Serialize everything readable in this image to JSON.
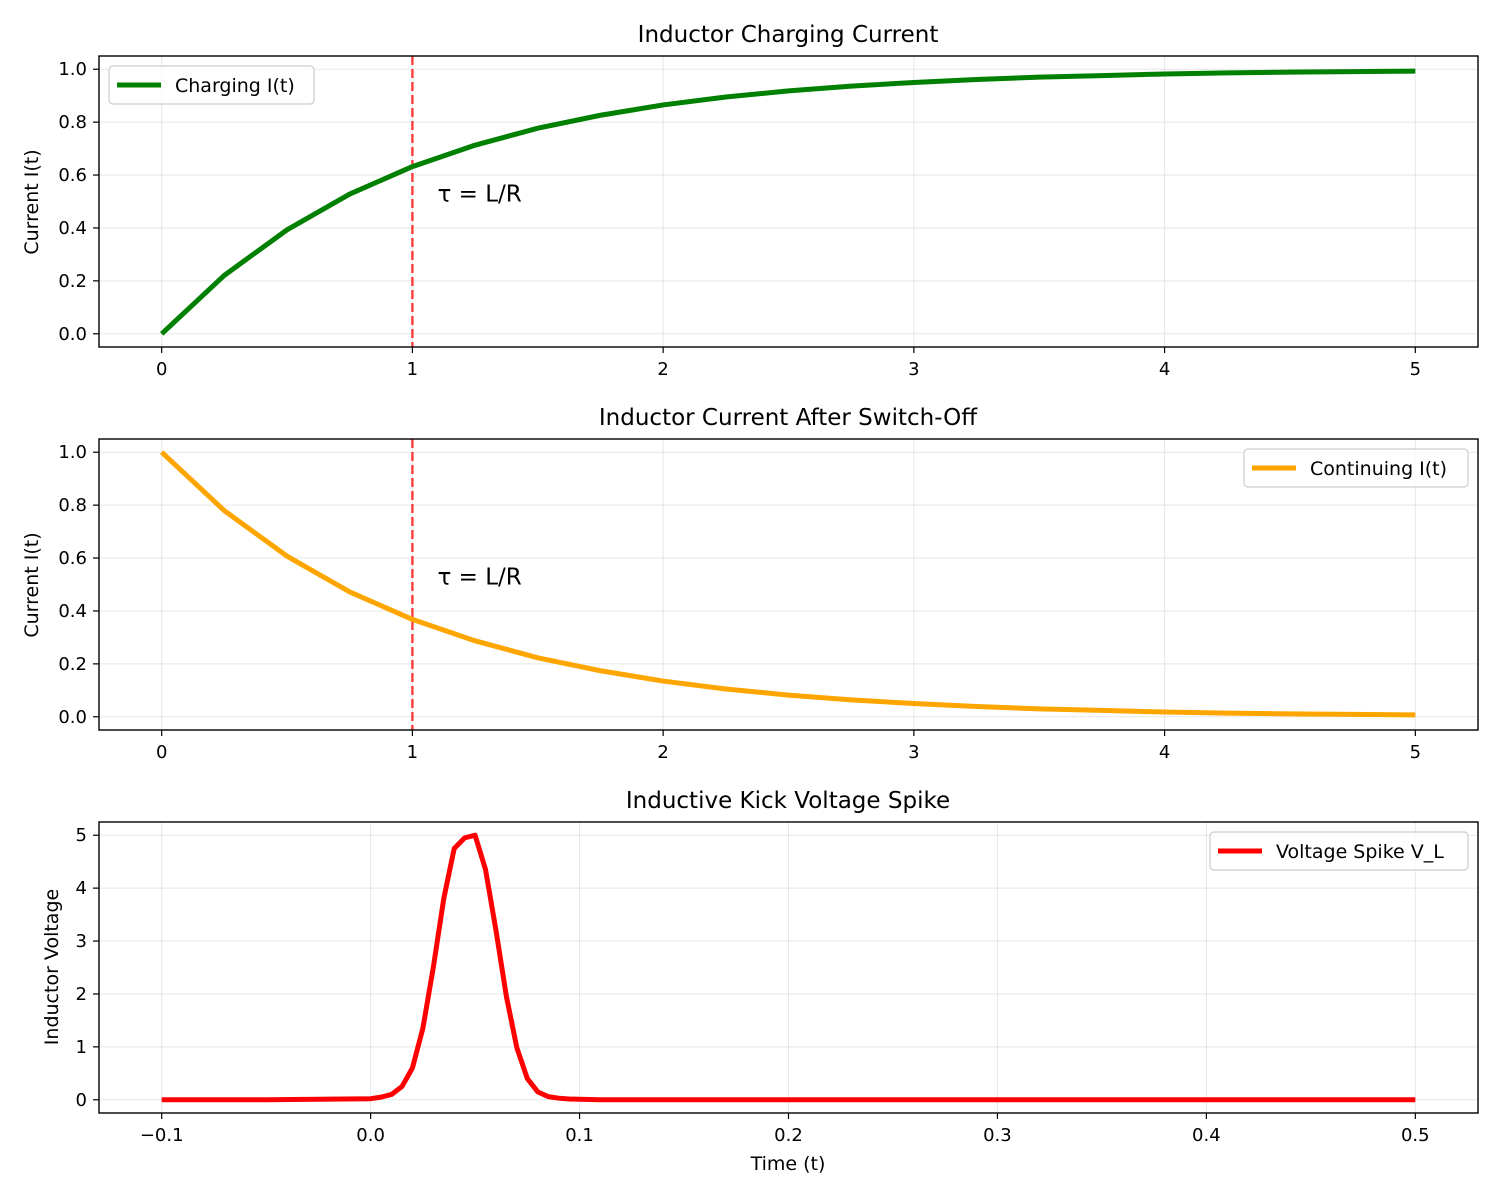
{
  "chart_data": [
    {
      "type": "line",
      "title": "Inductor Charging Current",
      "xlabel": "",
      "ylabel": "Current I(t)",
      "xlim": [
        -0.25,
        5.25
      ],
      "ylim": [
        -0.05,
        1.05
      ],
      "x_ticks": [
        "0",
        "1",
        "2",
        "3",
        "4",
        "5"
      ],
      "y_ticks": [
        "0.0",
        "0.2",
        "0.4",
        "0.6",
        "0.8",
        "1.0"
      ],
      "grid": true,
      "legend_position": "upper-left",
      "series": [
        {
          "name": "Charging I(t)",
          "color": "#008000",
          "x": [
            0,
            0.25,
            0.5,
            0.75,
            1,
            1.25,
            1.5,
            1.75,
            2,
            2.25,
            2.5,
            2.75,
            3,
            3.25,
            3.5,
            3.75,
            4,
            4.25,
            4.5,
            4.75,
            5
          ],
          "y": [
            0,
            0.221,
            0.393,
            0.528,
            0.632,
            0.713,
            0.777,
            0.826,
            0.865,
            0.895,
            0.918,
            0.936,
            0.95,
            0.961,
            0.97,
            0.976,
            0.982,
            0.986,
            0.989,
            0.991,
            0.993
          ]
        }
      ],
      "vline": {
        "x": 1,
        "color": "#ff0000",
        "style": "dashed"
      },
      "annotation": {
        "text": "τ = L/R",
        "x": 1.1,
        "y": 0.5
      }
    },
    {
      "type": "line",
      "title": "Inductor Current After Switch-Off",
      "xlabel": "",
      "ylabel": "Current I(t)",
      "xlim": [
        -0.25,
        5.25
      ],
      "ylim": [
        -0.05,
        1.05
      ],
      "x_ticks": [
        "0",
        "1",
        "2",
        "3",
        "4",
        "5"
      ],
      "y_ticks": [
        "0.0",
        "0.2",
        "0.4",
        "0.6",
        "0.8",
        "1.0"
      ],
      "grid": true,
      "legend_position": "upper-right",
      "series": [
        {
          "name": "Continuing I(t)",
          "color": "#ffa500",
          "x": [
            0,
            0.25,
            0.5,
            0.75,
            1,
            1.25,
            1.5,
            1.75,
            2,
            2.25,
            2.5,
            2.75,
            3,
            3.25,
            3.5,
            3.75,
            4,
            4.25,
            4.5,
            4.75,
            5
          ],
          "y": [
            1,
            0.779,
            0.607,
            0.472,
            0.368,
            0.287,
            0.223,
            0.174,
            0.135,
            0.105,
            0.082,
            0.064,
            0.05,
            0.039,
            0.03,
            0.024,
            0.018,
            0.014,
            0.011,
            0.009,
            0.007
          ]
        }
      ],
      "vline": {
        "x": 1,
        "color": "#ff0000",
        "style": "dashed"
      },
      "annotation": {
        "text": "τ = L/R",
        "x": 1.1,
        "y": 0.5
      }
    },
    {
      "type": "line",
      "title": "Inductive Kick Voltage Spike",
      "xlabel": "Time (t)",
      "ylabel": "Inductor Voltage",
      "xlim": [
        -0.13,
        0.53
      ],
      "ylim": [
        -0.25,
        5.25
      ],
      "x_ticks": [
        "−0.1",
        "0.0",
        "0.1",
        "0.2",
        "0.3",
        "0.4",
        "0.5"
      ],
      "y_ticks": [
        "0",
        "1",
        "2",
        "3",
        "4",
        "5"
      ],
      "grid": true,
      "legend_position": "upper-right",
      "series": [
        {
          "name": "Voltage Spike V_L",
          "color": "#ff0000",
          "x": [
            -0.1,
            -0.05,
            0,
            0.005,
            0.01,
            0.015,
            0.02,
            0.025,
            0.03,
            0.035,
            0.04,
            0.045,
            0.05,
            0.055,
            0.06,
            0.065,
            0.07,
            0.075,
            0.08,
            0.085,
            0.09,
            0.095,
            0.1,
            0.11,
            0.2,
            0.3,
            0.4,
            0.5
          ],
          "y": [
            0,
            0,
            0.02,
            0.05,
            0.1,
            0.25,
            0.6,
            1.35,
            2.5,
            3.8,
            4.75,
            4.95,
            5.0,
            4.35,
            3.2,
            1.95,
            0.98,
            0.4,
            0.15,
            0.06,
            0.03,
            0.015,
            0.01,
            0,
            0,
            0,
            0,
            0
          ]
        }
      ],
      "vline": null,
      "annotation": null
    }
  ]
}
